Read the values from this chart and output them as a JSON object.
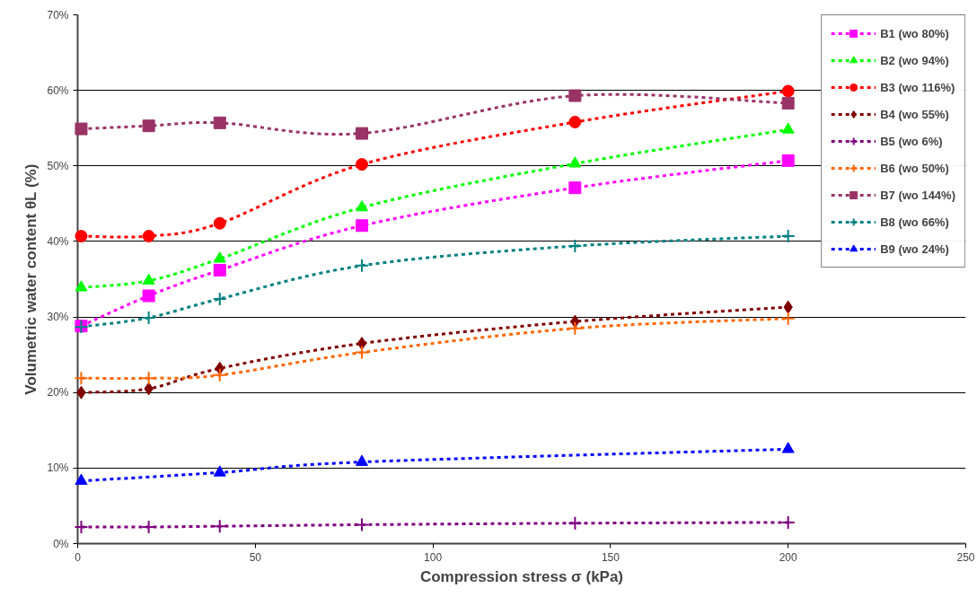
{
  "chart_data": {
    "type": "line",
    "xlabel": "Compression stress σ (kPa)",
    "ylabel": "Volumetric water content θL (%)",
    "x": [
      1,
      20,
      40,
      80,
      140,
      200
    ],
    "xlim": [
      0,
      250
    ],
    "xticks": [
      0,
      50,
      100,
      150,
      200,
      250
    ],
    "ylim": [
      0,
      70
    ],
    "yticks": [
      {
        "value": 0,
        "label": "0%"
      },
      {
        "value": 10,
        "label": "10%"
      },
      {
        "value": 20,
        "label": "20%"
      },
      {
        "value": 30,
        "label": "30%"
      },
      {
        "value": 40,
        "label": "40%"
      },
      {
        "value": 50,
        "label": "50%"
      },
      {
        "value": 60,
        "label": "60%"
      },
      {
        "value": 70,
        "label": "70%"
      }
    ],
    "grid": "y",
    "legend": "top right",
    "line_style": "dashed",
    "series": [
      {
        "name": "B1 (wo 80%)",
        "color": "#ff00ff",
        "marker": "square",
        "values": [
          28.8,
          32.8,
          36.2,
          42.1,
          47.1,
          50.7
        ]
      },
      {
        "name": "B2 (wo 94%)",
        "color": "#00ff00",
        "marker": "triangle",
        "values": [
          33.9,
          34.8,
          37.7,
          44.5,
          50.3,
          54.8
        ]
      },
      {
        "name": "B3 (wo 116%)",
        "color": "#ff0000",
        "marker": "circle",
        "values": [
          40.7,
          40.7,
          42.4,
          50.2,
          55.8,
          59.9
        ]
      },
      {
        "name": "B4 (wo 55%)",
        "color": "#800000",
        "marker": "diamond",
        "values": [
          20.0,
          20.5,
          23.2,
          26.5,
          29.4,
          31.3
        ]
      },
      {
        "name": "B5 (wo 6%)",
        "color": "#800080",
        "marker": "cross",
        "values": [
          2.2,
          2.2,
          2.3,
          2.5,
          2.7,
          2.8
        ]
      },
      {
        "name": "B6 (wo 50%)",
        "color": "#ff6600",
        "marker": "cross",
        "values": [
          21.9,
          21.9,
          22.3,
          25.3,
          28.5,
          29.8
        ]
      },
      {
        "name": "B7 (wo 144%)",
        "color": "#993366",
        "marker": "square",
        "values": [
          54.9,
          55.3,
          55.7,
          54.3,
          59.3,
          58.3
        ]
      },
      {
        "name": "B8 (wo 66%)",
        "color": "#008080",
        "marker": "cross",
        "values": [
          28.7,
          29.9,
          32.4,
          36.8,
          39.4,
          40.7
        ]
      },
      {
        "name": "B9 (wo 24%)",
        "color": "#0000ff",
        "marker": "triangle",
        "x": [
          1,
          40,
          80,
          200
        ],
        "values": [
          8.3,
          9.4,
          10.8,
          12.5
        ]
      }
    ]
  }
}
